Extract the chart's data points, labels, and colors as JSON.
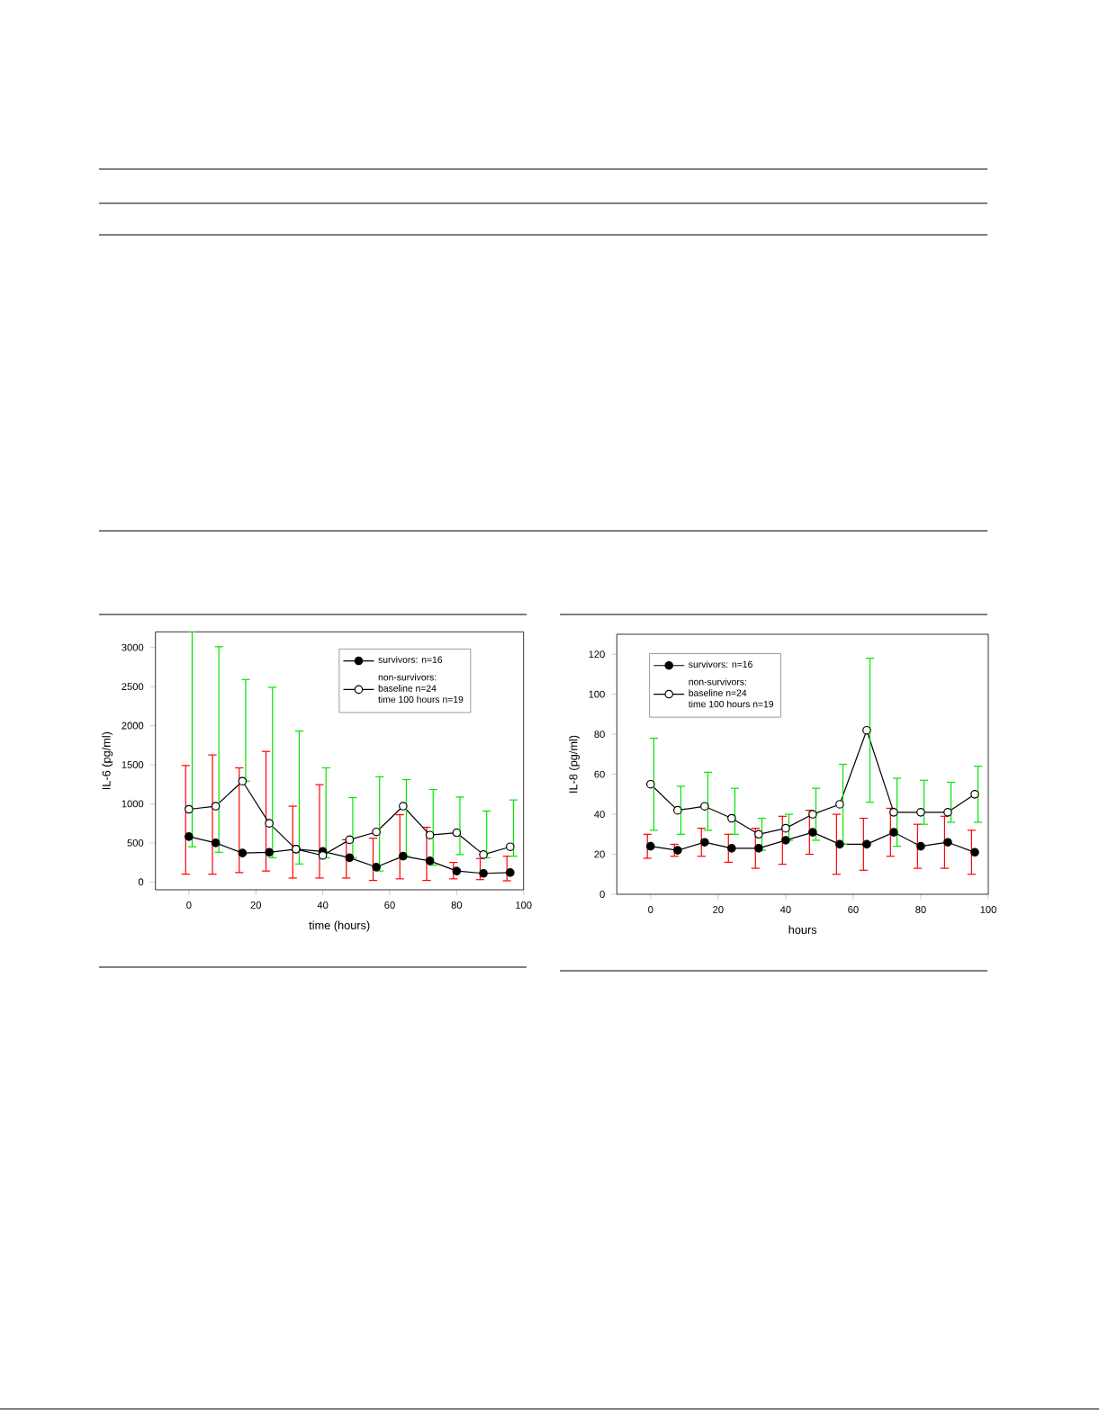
{
  "chart_data": [
    {
      "type": "line",
      "xlabel": "time (hours)",
      "ylabel": "IL-6 (pg/ml)",
      "xlim": [
        -10,
        100
      ],
      "ylim": [
        -100,
        3200
      ],
      "xticks": [
        0,
        20,
        40,
        60,
        80,
        100
      ],
      "yticks": [
        0,
        500,
        1000,
        1500,
        2000,
        2500,
        3000
      ],
      "legend": "top right",
      "marker": "circle",
      "x": [
        0,
        8,
        16,
        24,
        32,
        40,
        48,
        56,
        64,
        72,
        80,
        88,
        96
      ],
      "series": [
        {
          "name": "survivors: n=16",
          "color": "#000000",
          "values": [
            580,
            500,
            370,
            380,
            420,
            390,
            310,
            190,
            330,
            270,
            140,
            110,
            120
          ],
          "errors": [
            [
              100,
              1490
            ],
            [
              100,
              1625
            ],
            [
              120,
              1460
            ],
            [
              140,
              1670
            ],
            [
              50,
              970
            ],
            [
              50,
              1245
            ],
            [
              50,
              540
            ],
            [
              20,
              560
            ],
            [
              40,
              860
            ],
            [
              20,
              700
            ],
            [
              40,
              250
            ],
            [
              30,
              300
            ],
            [
              15,
              330
            ]
          ]
        },
        {
          "name": "non-survivors:\nbaseline n=24\ntime 100 hours n=19",
          "color": "#000000",
          "values": [
            930,
            970,
            1290,
            750,
            420,
            340,
            540,
            640,
            970,
            600,
            630,
            350,
            450
          ],
          "errors": [
            [
              450,
              3200
            ],
            [
              380,
              3010
            ],
            [
              1290,
              2590
            ],
            [
              310,
              2490
            ],
            [
              230,
              1930
            ],
            [
              310,
              1460
            ],
            [
              310,
              1080
            ],
            [
              140,
              1345
            ],
            [
              330,
              1310
            ],
            [
              215,
              1183
            ],
            [
              350,
              1087
            ],
            [
              310,
              907
            ],
            [
              330,
              1049
            ]
          ]
        }
      ]
    },
    {
      "type": "line",
      "xlabel": "hours",
      "ylabel": "IL-8 (pg/ml)",
      "xlim": [
        -10,
        100
      ],
      "ylim": [
        0,
        130
      ],
      "xticks": [
        0,
        20,
        40,
        60,
        80,
        100
      ],
      "yticks": [
        0,
        20,
        40,
        60,
        80,
        100,
        120
      ],
      "legend": "top left",
      "marker": "circle",
      "x": [
        0,
        8,
        16,
        24,
        32,
        40,
        48,
        56,
        64,
        72,
        80,
        88,
        96
      ],
      "series": [
        {
          "name": "survivors: n=16",
          "color": "#000000",
          "values": [
            24,
            22,
            26,
            23,
            23,
            27,
            31,
            25,
            25,
            31,
            24,
            26,
            21
          ],
          "errors": [
            [
              18,
              30
            ],
            [
              19,
              25
            ],
            [
              19,
              33
            ],
            [
              16,
              30
            ],
            [
              13,
              33
            ],
            [
              15,
              39
            ],
            [
              20,
              42
            ],
            [
              10,
              40
            ],
            [
              12,
              38
            ],
            [
              19,
              43
            ],
            [
              13,
              35
            ],
            [
              13,
              39
            ],
            [
              10,
              32
            ]
          ]
        },
        {
          "name": "non-survivors:\nbaseline n=24\ntime 100 hours n=19",
          "color": "#000000",
          "values": [
            55,
            42,
            44,
            38,
            30,
            33,
            40,
            45,
            82,
            41,
            41,
            41,
            50
          ],
          "errors": [
            [
              32,
              78
            ],
            [
              30,
              54
            ],
            [
              32,
              61
            ],
            [
              30,
              53
            ],
            [
              22,
              38
            ],
            [
              27,
              40
            ],
            [
              27,
              53
            ],
            [
              25,
              65
            ],
            [
              46,
              118
            ],
            [
              24,
              58
            ],
            [
              35,
              57
            ],
            [
              36,
              56
            ],
            [
              36,
              64
            ]
          ]
        }
      ]
    }
  ]
}
